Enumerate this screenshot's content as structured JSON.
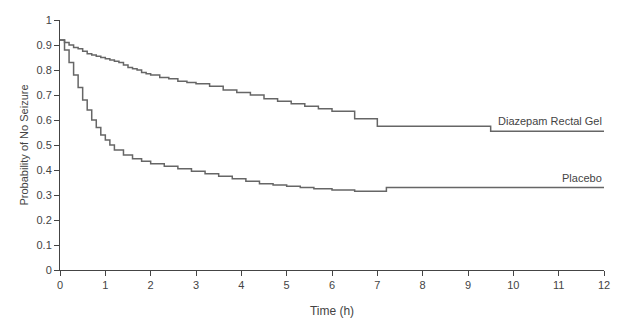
{
  "chart_data": {
    "type": "step",
    "xlabel": "Time (h)",
    "ylabel": "Probability of No Seizure",
    "xlim": [
      0,
      12
    ],
    "ylim": [
      0,
      1.0
    ],
    "xticks": [
      0,
      1,
      2,
      3,
      4,
      5,
      6,
      7,
      8,
      9,
      10,
      11,
      12
    ],
    "yticks": [
      0,
      0.1,
      0.2,
      0.3,
      0.4,
      0.5,
      0.6,
      0.7,
      0.8,
      0.9,
      1
    ],
    "grid": false,
    "series": [
      {
        "name": "Diazepam Rectal Gel",
        "color": "#666666",
        "x": [
          0,
          0.1,
          0.2,
          0.3,
          0.4,
          0.5,
          0.6,
          0.7,
          0.8,
          0.9,
          1.0,
          1.1,
          1.2,
          1.3,
          1.4,
          1.5,
          1.6,
          1.7,
          1.8,
          1.9,
          2.0,
          2.2,
          2.4,
          2.6,
          2.8,
          3.0,
          3.3,
          3.6,
          3.9,
          4.2,
          4.5,
          4.8,
          5.1,
          5.4,
          5.7,
          6.0,
          6.5,
          7.0,
          9.5,
          12.0
        ],
        "values": [
          0.92,
          0.91,
          0.9,
          0.89,
          0.885,
          0.875,
          0.865,
          0.86,
          0.855,
          0.85,
          0.845,
          0.84,
          0.835,
          0.83,
          0.82,
          0.81,
          0.805,
          0.8,
          0.79,
          0.785,
          0.78,
          0.77,
          0.765,
          0.755,
          0.75,
          0.745,
          0.735,
          0.72,
          0.71,
          0.7,
          0.685,
          0.675,
          0.665,
          0.655,
          0.645,
          0.635,
          0.605,
          0.575,
          0.555,
          0.555
        ]
      },
      {
        "name": "Placebo",
        "color": "#666666",
        "x": [
          0,
          0.1,
          0.2,
          0.3,
          0.4,
          0.5,
          0.6,
          0.7,
          0.8,
          0.9,
          1.0,
          1.1,
          1.2,
          1.4,
          1.6,
          1.8,
          2.0,
          2.3,
          2.6,
          2.9,
          3.2,
          3.5,
          3.8,
          4.1,
          4.4,
          4.7,
          5.0,
          5.3,
          5.6,
          6.0,
          6.5,
          7.2,
          12.0
        ],
        "values": [
          0.92,
          0.88,
          0.83,
          0.78,
          0.73,
          0.68,
          0.64,
          0.6,
          0.57,
          0.54,
          0.52,
          0.5,
          0.48,
          0.46,
          0.445,
          0.435,
          0.425,
          0.415,
          0.405,
          0.395,
          0.385,
          0.375,
          0.365,
          0.355,
          0.345,
          0.34,
          0.335,
          0.33,
          0.325,
          0.32,
          0.315,
          0.33,
          0.33
        ]
      }
    ]
  }
}
